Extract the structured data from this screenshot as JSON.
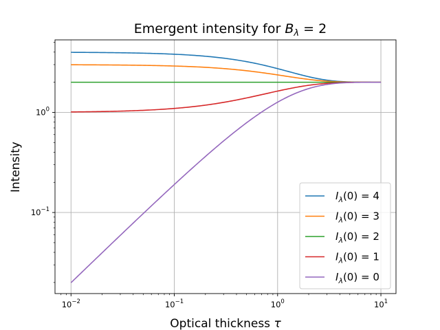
{
  "chart_data": {
    "type": "line",
    "title": {
      "text": "Emergent intensity for ",
      "math": "B",
      "sub": "λ",
      "suffix": " = 2"
    },
    "xlabel": {
      "text": "Optical thickness ",
      "math": "τ"
    },
    "ylabel": "Intensity",
    "xscale": "log",
    "yscale": "log",
    "xlim": [
      0.007,
      14
    ],
    "ylim": [
      0.0155,
      5.3
    ],
    "xticks": [
      {
        "value": 0.01,
        "base": "10",
        "exp": "−2"
      },
      {
        "value": 0.1,
        "base": "10",
        "exp": "−1"
      },
      {
        "value": 1,
        "base": "10",
        "exp": "0"
      },
      {
        "value": 10,
        "base": "10",
        "exp": "1"
      }
    ],
    "yticks": [
      {
        "value": 0.1,
        "base": "10",
        "exp": "−1"
      },
      {
        "value": 1,
        "base": "10",
        "exp": "0"
      }
    ],
    "grid": true,
    "legend_position": "lower-right",
    "source_function": 2,
    "tau_range": [
      0.01,
      10
    ],
    "series": [
      {
        "name": "4",
        "initial": 4,
        "color": "#1f77b4"
      },
      {
        "name": "3",
        "initial": 3,
        "color": "#ff7f0e"
      },
      {
        "name": "2",
        "initial": 2,
        "color": "#2ca02c"
      },
      {
        "name": "1",
        "initial": 1,
        "color": "#d62728"
      },
      {
        "name": "0",
        "initial": 0,
        "color": "#9467bd"
      }
    ],
    "legend_label": {
      "prefix": "I",
      "sub": "λ",
      "suffix": "(0) = "
    }
  }
}
